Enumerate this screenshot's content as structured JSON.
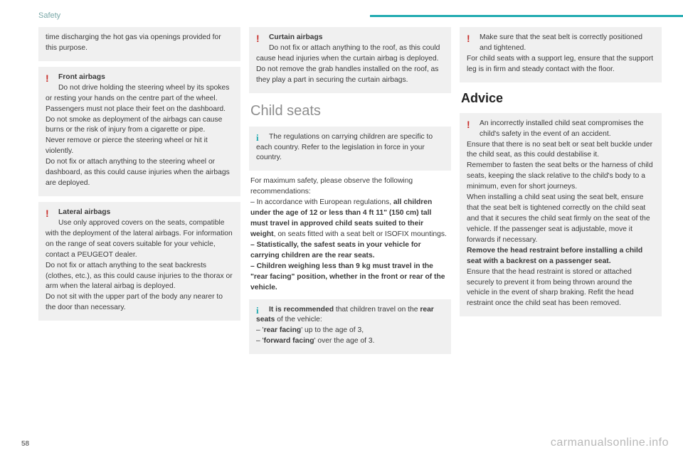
{
  "header": {
    "section": "Safety"
  },
  "col1": {
    "intro_box": "time discharging the hot gas via openings provided for this purpose.",
    "front": {
      "title": "Front airbags",
      "body": "Do not drive holding the steering wheel by its spokes or resting your hands on the centre part of the wheel.\nPassengers must not place their feet on the dashboard.\nDo not smoke as deployment of the airbags can cause burns or the risk of injury from a cigarette or pipe.\nNever remove or pierce the steering wheel or hit it violently.\nDo not fix or attach anything to the steering wheel or dashboard, as this could cause injuries when the airbags are deployed."
    },
    "lateral": {
      "title": "Lateral airbags",
      "body": "Use only approved covers on the seats, compatible with the deployment of the lateral airbags. For information on the range of seat covers suitable for your vehicle, contact a PEUGEOT dealer.\nDo not fix or attach anything to the seat backrests (clothes, etc.), as this could cause injuries to the thorax or arm when the lateral airbag is deployed.\nDo not sit with the upper part of the body any nearer to the door than necessary."
    }
  },
  "col2": {
    "curtain": {
      "title": "Curtain airbags",
      "body": "Do not fix or attach anything to the roof, as this could cause head injuries when the curtain airbag is deployed.\nDo not remove the grab handles installed on the roof, as they play a part in securing the curtain airbags."
    },
    "heading": "Child seats",
    "regs": "The regulations on carrying children are specific to each country. Refer to the legislation in force in your country.",
    "main_intro": "For maximum safety, please observe the following recommendations:",
    "b1a": "–  In accordance with European regulations, ",
    "b1b": "all children under the age of 12 or less than 4 ft 11\" (150 cm) tall must travel in approved child seats suited to their weight",
    "b1c": ", on seats fitted with a seat belt or ISOFIX mountings.",
    "b2": "–  Statistically, the safest seats in your vehicle for carrying children are the rear seats.",
    "b3": "–  Children weighing less than 9 kg must travel in the \"rear facing\" position, whether in the front or rear of the vehicle.",
    "rec_lead_a": "It is recommended",
    "rec_lead_b": " that children travel on the ",
    "rec_lead_c": "rear seats",
    "rec_lead_d": " of the vehicle:",
    "rec1a": "–  '",
    "rec1b": "rear facing",
    "rec1c": "' up to the age of 3,",
    "rec2a": "–  '",
    "rec2b": "forward facing",
    "rec2c": "' over the age of 3."
  },
  "col3": {
    "belt": {
      "l1": "Make sure that the seat belt is correctly positioned and tightened.",
      "l2": "For child seats with a support leg, ensure that the support leg is in firm and steady contact with the floor."
    },
    "advice_heading": "Advice",
    "advice": {
      "p1": "An incorrectly installed child seat compromises the child's safety in the event of an accident.",
      "p2": "Ensure that there is no seat belt or seat belt buckle under the child seat, as this could destabilise it.",
      "p3": "Remember to fasten the seat belts or the harness of child seats, keeping the slack relative to the child's body to a minimum, even for short journeys.",
      "p4": "When installing a child seat using the seat belt, ensure that the seat belt is tightened correctly on the child seat and that it secures the child seat firmly on the seat of the vehicle. If the passenger seat is adjustable, move it forwards if necessary.",
      "p5": "Remove the head restraint before installing a child seat with a backrest on a passenger seat.",
      "p6": "Ensure that the head restraint is stored or attached securely to prevent it from being thrown around the vehicle in the event of sharp braking. Refit the head restraint once the child seat has been removed."
    }
  },
  "pagenum": "58",
  "watermark": "carmanualsonline.info"
}
